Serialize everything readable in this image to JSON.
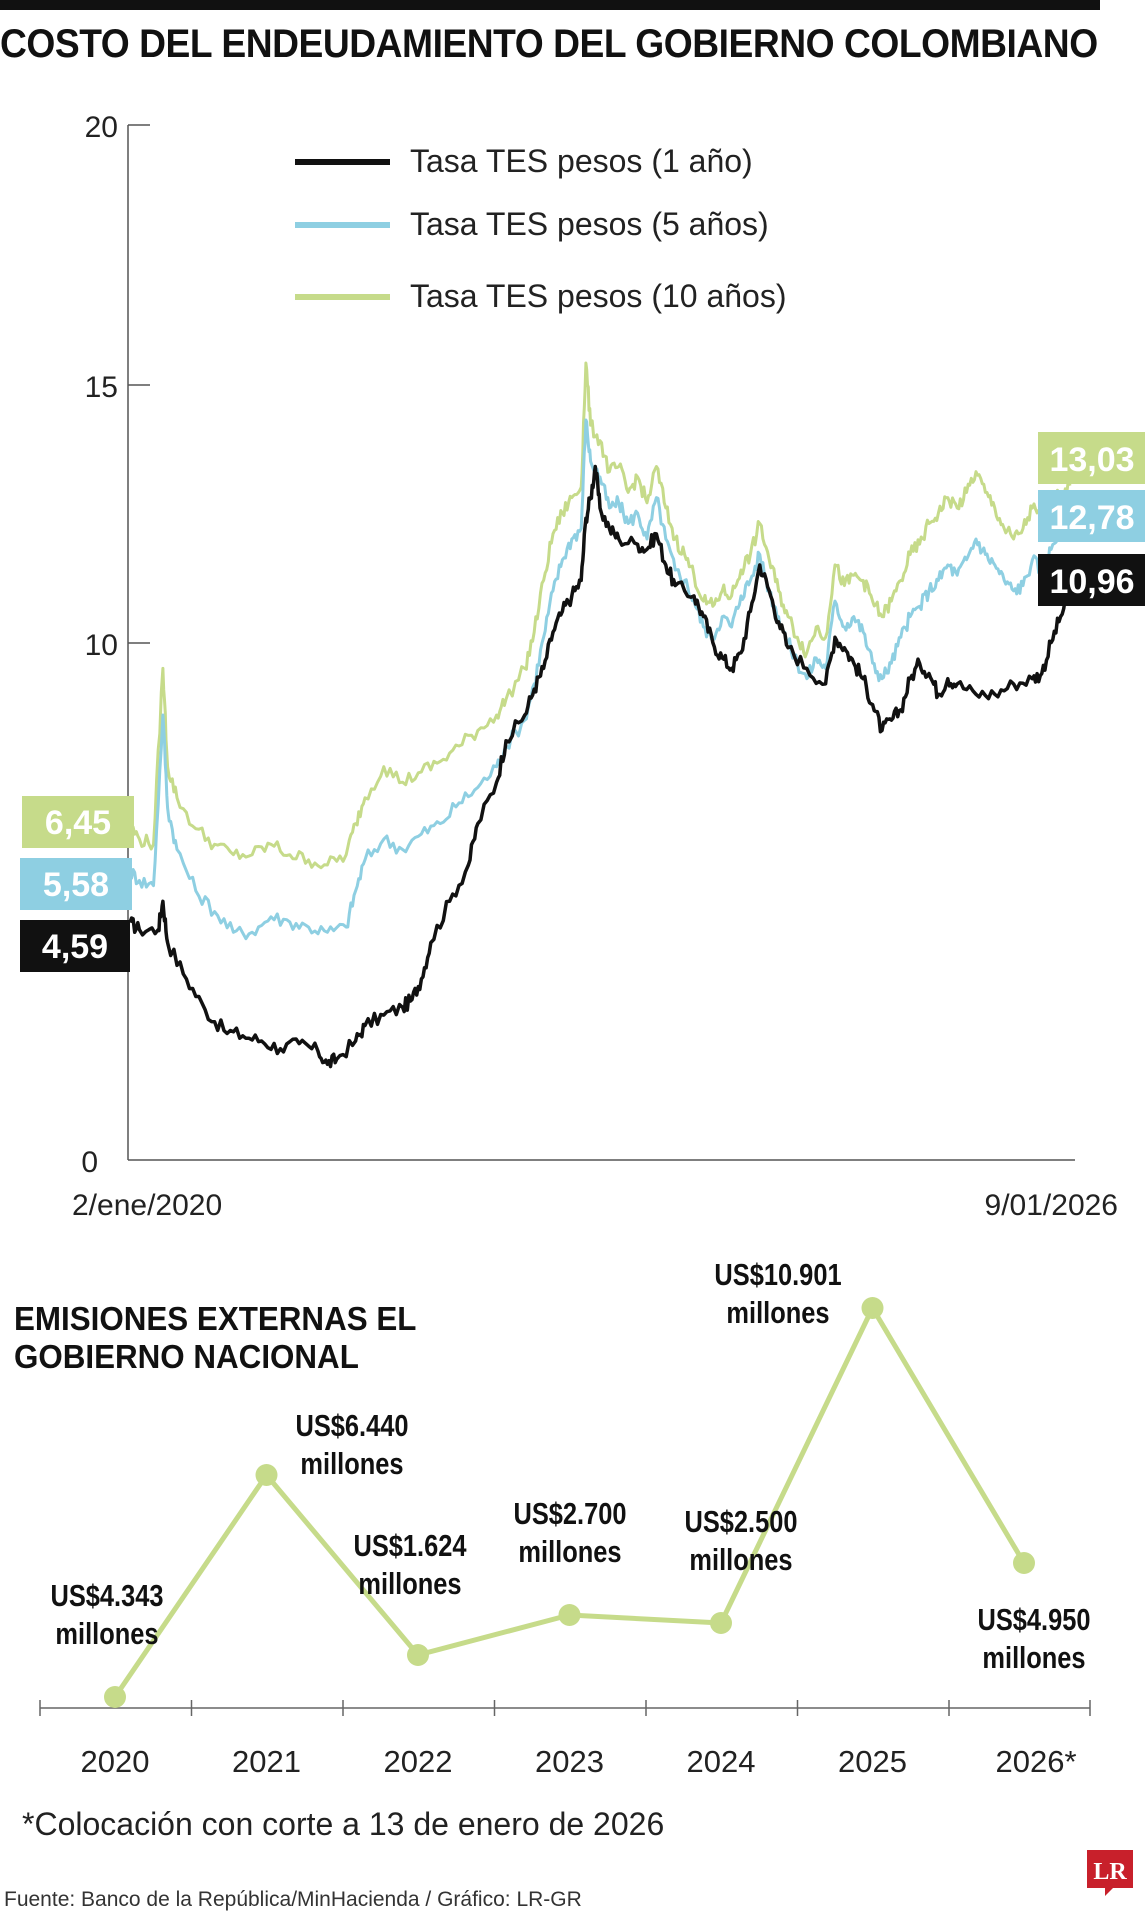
{
  "title": "COSTO DEL ENDEUDAMIENTO DEL GOBIERNO COLOMBIANO",
  "chart_data": [
    {
      "type": "line",
      "title": "COSTO DEL ENDEUDAMIENTO DEL GOBIERNO COLOMBIANO",
      "ylim": [
        0,
        20
      ],
      "yticks": [
        "0",
        "10",
        "15",
        "20"
      ],
      "x_start_label": "2/ene/2020",
      "x_end_label": "9/01/2026",
      "series": [
        {
          "name": "Tasa TES pesos (1 año)",
          "color": "#111111",
          "start_label": "4,59",
          "end_label": "10,96",
          "points": [
            [
              0,
              4.59
            ],
            [
              0.01,
              4.45
            ],
            [
              0.03,
              4.45
            ],
            [
              0.035,
              5.0
            ],
            [
              0.04,
              4.2
            ],
            [
              0.06,
              3.5
            ],
            [
              0.08,
              2.9
            ],
            [
              0.1,
              2.5
            ],
            [
              0.12,
              2.4
            ],
            [
              0.14,
              2.3
            ],
            [
              0.16,
              2.15
            ],
            [
              0.18,
              2.25
            ],
            [
              0.2,
              2.1
            ],
            [
              0.21,
              1.85
            ],
            [
              0.22,
              1.95
            ],
            [
              0.24,
              2.3
            ],
            [
              0.25,
              2.6
            ],
            [
              0.27,
              2.8
            ],
            [
              0.29,
              2.95
            ],
            [
              0.3,
              3.1
            ],
            [
              0.31,
              3.5
            ],
            [
              0.32,
              4.2
            ],
            [
              0.34,
              5.0
            ],
            [
              0.36,
              5.7
            ],
            [
              0.37,
              6.5
            ],
            [
              0.39,
              7.3
            ],
            [
              0.4,
              8.1
            ],
            [
              0.42,
              8.6
            ],
            [
              0.43,
              9.1
            ],
            [
              0.44,
              9.5
            ],
            [
              0.45,
              10.2
            ],
            [
              0.46,
              10.6
            ],
            [
              0.47,
              10.9
            ],
            [
              0.48,
              11.2
            ],
            [
              0.485,
              12.4
            ],
            [
              0.49,
              12.8
            ],
            [
              0.495,
              13.4
            ],
            [
              0.5,
              12.6
            ],
            [
              0.51,
              12.2
            ],
            [
              0.52,
              12.0
            ],
            [
              0.54,
              11.9
            ],
            [
              0.55,
              11.8
            ],
            [
              0.56,
              12.1
            ],
            [
              0.57,
              11.5
            ],
            [
              0.58,
              11.1
            ],
            [
              0.6,
              10.9
            ],
            [
              0.61,
              10.5
            ],
            [
              0.62,
              10.0
            ],
            [
              0.63,
              9.7
            ],
            [
              0.64,
              9.5
            ],
            [
              0.65,
              9.8
            ],
            [
              0.66,
              10.6
            ],
            [
              0.67,
              11.5
            ],
            [
              0.68,
              11.0
            ],
            [
              0.69,
              10.4
            ],
            [
              0.7,
              9.9
            ],
            [
              0.72,
              9.5
            ],
            [
              0.74,
              9.2
            ],
            [
              0.75,
              10.1
            ],
            [
              0.76,
              9.9
            ],
            [
              0.77,
              9.6
            ],
            [
              0.78,
              9.3
            ],
            [
              0.79,
              8.8
            ],
            [
              0.8,
              8.3
            ],
            [
              0.81,
              8.5
            ],
            [
              0.82,
              8.7
            ],
            [
              0.83,
              9.3
            ],
            [
              0.84,
              9.6
            ],
            [
              0.85,
              9.4
            ],
            [
              0.86,
              9.0
            ],
            [
              0.87,
              9.3
            ],
            [
              0.88,
              9.2
            ],
            [
              0.9,
              9.0
            ],
            [
              0.92,
              9.0
            ],
            [
              0.94,
              9.2
            ],
            [
              0.96,
              9.3
            ],
            [
              0.97,
              9.4
            ],
            [
              0.98,
              10.0
            ],
            [
              0.99,
              10.5
            ],
            [
              1.0,
              10.96
            ]
          ]
        },
        {
          "name": "Tasa TES pesos (5 años)",
          "color": "#8ecfe2",
          "start_label": "5,58",
          "end_label": "12,78",
          "points": [
            [
              0,
              5.58
            ],
            [
              0.01,
              5.4
            ],
            [
              0.025,
              5.3
            ],
            [
              0.035,
              8.6
            ],
            [
              0.04,
              6.8
            ],
            [
              0.05,
              6.0
            ],
            [
              0.07,
              5.2
            ],
            [
              0.09,
              4.8
            ],
            [
              0.11,
              4.4
            ],
            [
              0.13,
              4.4
            ],
            [
              0.15,
              4.7
            ],
            [
              0.17,
              4.6
            ],
            [
              0.19,
              4.5
            ],
            [
              0.21,
              4.4
            ],
            [
              0.23,
              4.5
            ],
            [
              0.24,
              5.2
            ],
            [
              0.25,
              5.8
            ],
            [
              0.27,
              6.2
            ],
            [
              0.29,
              6.0
            ],
            [
              0.31,
              6.3
            ],
            [
              0.33,
              6.5
            ],
            [
              0.35,
              6.9
            ],
            [
              0.37,
              7.2
            ],
            [
              0.39,
              7.6
            ],
            [
              0.4,
              8.0
            ],
            [
              0.42,
              8.5
            ],
            [
              0.43,
              9.2
            ],
            [
              0.44,
              10.1
            ],
            [
              0.45,
              11.0
            ],
            [
              0.46,
              11.6
            ],
            [
              0.47,
              12.0
            ],
            [
              0.48,
              12.2
            ],
            [
              0.485,
              14.3
            ],
            [
              0.49,
              13.5
            ],
            [
              0.5,
              13.2
            ],
            [
              0.51,
              12.6
            ],
            [
              0.52,
              12.7
            ],
            [
              0.53,
              12.3
            ],
            [
              0.54,
              12.5
            ],
            [
              0.55,
              12.0
            ],
            [
              0.56,
              12.8
            ],
            [
              0.57,
              12.0
            ],
            [
              0.58,
              11.4
            ],
            [
              0.59,
              11.2
            ],
            [
              0.6,
              10.8
            ],
            [
              0.61,
              10.3
            ],
            [
              0.62,
              10.1
            ],
            [
              0.63,
              10.5
            ],
            [
              0.64,
              10.3
            ],
            [
              0.65,
              10.9
            ],
            [
              0.66,
              11.2
            ],
            [
              0.67,
              11.7
            ],
            [
              0.68,
              11.0
            ],
            [
              0.69,
              10.5
            ],
            [
              0.7,
              10.0
            ],
            [
              0.71,
              9.6
            ],
            [
              0.72,
              9.3
            ],
            [
              0.73,
              9.7
            ],
            [
              0.74,
              9.5
            ],
            [
              0.75,
              10.8
            ],
            [
              0.76,
              10.3
            ],
            [
              0.77,
              10.5
            ],
            [
              0.78,
              10.2
            ],
            [
              0.79,
              9.6
            ],
            [
              0.8,
              9.3
            ],
            [
              0.81,
              9.6
            ],
            [
              0.82,
              10.1
            ],
            [
              0.83,
              10.5
            ],
            [
              0.84,
              10.7
            ],
            [
              0.85,
              11.0
            ],
            [
              0.86,
              11.2
            ],
            [
              0.87,
              11.5
            ],
            [
              0.88,
              11.3
            ],
            [
              0.89,
              11.6
            ],
            [
              0.9,
              12.0
            ],
            [
              0.91,
              11.7
            ],
            [
              0.92,
              11.5
            ],
            [
              0.93,
              11.2
            ],
            [
              0.94,
              11.0
            ],
            [
              0.95,
              11.1
            ],
            [
              0.96,
              11.6
            ],
            [
              0.97,
              11.4
            ],
            [
              0.98,
              11.8
            ],
            [
              0.99,
              12.2
            ],
            [
              1.0,
              12.78
            ]
          ]
        },
        {
          "name": "Tasa TES pesos (10 años)",
          "color": "#c6db8a",
          "start_label": "6,45",
          "end_label": "13,03",
          "points": [
            [
              0,
              6.45
            ],
            [
              0.01,
              6.2
            ],
            [
              0.025,
              6.1
            ],
            [
              0.035,
              9.5
            ],
            [
              0.04,
              7.6
            ],
            [
              0.05,
              7.0
            ],
            [
              0.07,
              6.4
            ],
            [
              0.09,
              6.1
            ],
            [
              0.11,
              5.9
            ],
            [
              0.13,
              5.9
            ],
            [
              0.15,
              6.1
            ],
            [
              0.17,
              5.9
            ],
            [
              0.19,
              5.8
            ],
            [
              0.21,
              5.7
            ],
            [
              0.23,
              5.9
            ],
            [
              0.24,
              6.5
            ],
            [
              0.25,
              7.0
            ],
            [
              0.27,
              7.6
            ],
            [
              0.29,
              7.3
            ],
            [
              0.31,
              7.5
            ],
            [
              0.33,
              7.7
            ],
            [
              0.35,
              8.0
            ],
            [
              0.37,
              8.3
            ],
            [
              0.39,
              8.6
            ],
            [
              0.4,
              8.9
            ],
            [
              0.42,
              9.5
            ],
            [
              0.43,
              10.2
            ],
            [
              0.44,
              11.2
            ],
            [
              0.45,
              12.1
            ],
            [
              0.46,
              12.5
            ],
            [
              0.47,
              12.8
            ],
            [
              0.48,
              13.0
            ],
            [
              0.485,
              15.4
            ],
            [
              0.49,
              14.2
            ],
            [
              0.5,
              13.9
            ],
            [
              0.51,
              13.3
            ],
            [
              0.52,
              13.4
            ],
            [
              0.53,
              12.9
            ],
            [
              0.54,
              13.2
            ],
            [
              0.55,
              12.7
            ],
            [
              0.56,
              13.4
            ],
            [
              0.57,
              12.6
            ],
            [
              0.58,
              12.0
            ],
            [
              0.59,
              11.7
            ],
            [
              0.6,
              11.3
            ],
            [
              0.61,
              10.8
            ],
            [
              0.62,
              10.7
            ],
            [
              0.63,
              11.0
            ],
            [
              0.64,
              10.9
            ],
            [
              0.65,
              11.4
            ],
            [
              0.66,
              11.7
            ],
            [
              0.67,
              12.3
            ],
            [
              0.68,
              11.6
            ],
            [
              0.69,
              11.0
            ],
            [
              0.7,
              10.5
            ],
            [
              0.71,
              10.1
            ],
            [
              0.72,
              9.8
            ],
            [
              0.73,
              10.3
            ],
            [
              0.74,
              10.1
            ],
            [
              0.75,
              11.5
            ],
            [
              0.76,
              11.1
            ],
            [
              0.77,
              11.3
            ],
            [
              0.78,
              11.2
            ],
            [
              0.79,
              10.8
            ],
            [
              0.8,
              10.5
            ],
            [
              0.81,
              10.8
            ],
            [
              0.82,
              11.2
            ],
            [
              0.83,
              11.7
            ],
            [
              0.84,
              11.9
            ],
            [
              0.85,
              12.3
            ],
            [
              0.86,
              12.5
            ],
            [
              0.87,
              12.8
            ],
            [
              0.88,
              12.6
            ],
            [
              0.89,
              12.9
            ],
            [
              0.9,
              13.3
            ],
            [
              0.91,
              12.9
            ],
            [
              0.92,
              12.6
            ],
            [
              0.93,
              12.2
            ],
            [
              0.94,
              12.0
            ],
            [
              0.95,
              12.2
            ],
            [
              0.96,
              12.6
            ],
            [
              0.97,
              12.4
            ],
            [
              0.98,
              12.7
            ],
            [
              0.99,
              12.9
            ],
            [
              1.0,
              13.03
            ]
          ]
        }
      ]
    },
    {
      "type": "line",
      "title": "EMISIONES EXTERNAS EL GOBIERNO NACIONAL",
      "categories": [
        "2020",
        "2021",
        "2022",
        "2023",
        "2024",
        "2025",
        "2026*"
      ],
      "values": [
        4343,
        6440,
        1624,
        2700,
        2500,
        10901,
        4950
      ],
      "labels": [
        [
          "US$4.343",
          "millones"
        ],
        [
          "US$6.440",
          "millones"
        ],
        [
          "US$1.624",
          "millones"
        ],
        [
          "US$2.700",
          "millones"
        ],
        [
          "US$2.500",
          "millones"
        ],
        [
          "US$10.901",
          "millones"
        ],
        [
          "US$4.950",
          "millones"
        ]
      ],
      "color": "#c6db8a"
    }
  ],
  "footnote": "*Colocación con corte a 13 de enero de 2026",
  "source": "Fuente: Banco de la República/MinHacienda / Gráfico: LR-GR",
  "logo_text": "LR",
  "colors": {
    "one_year": "#111111",
    "five_year": "#8ecfe2",
    "ten_year": "#c6db8a",
    "logo": "#c8202b"
  }
}
